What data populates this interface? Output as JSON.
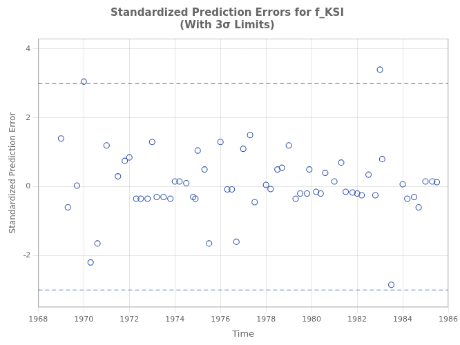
{
  "chart_data": {
    "type": "scatter",
    "title": "Standardized Prediction Errors for f_KSI\n(With 3σ Limits)",
    "xlabel": "Time",
    "ylabel": "Standardized Prediction Error",
    "xlim": [
      1968,
      1986
    ],
    "ylim": [
      -3.5,
      4.3
    ],
    "xticks": [
      1968,
      1970,
      1972,
      1974,
      1976,
      1978,
      1980,
      1982,
      1984,
      1986
    ],
    "yticks": [
      -2,
      0,
      2,
      4
    ],
    "grid": true,
    "marker": "open_circle",
    "color": "#3355AA",
    "x": [
      1969.0,
      1969.3,
      1969.7,
      1970.0,
      1970.3,
      1970.6,
      1971.0,
      1971.5,
      1971.8,
      1972.0,
      1972.3,
      1972.5,
      1972.8,
      1973.0,
      1973.2,
      1973.5,
      1973.8,
      1974.0,
      1974.2,
      1974.5,
      1974.8,
      1974.9,
      1975.0,
      1975.3,
      1975.5,
      1976.0,
      1976.3,
      1976.5,
      1976.7,
      1977.0,
      1977.3,
      1977.5,
      1978.0,
      1978.2,
      1978.5,
      1978.7,
      1979.0,
      1979.3,
      1979.5,
      1979.8,
      1979.9,
      1980.2,
      1980.4,
      1980.6,
      1981.0,
      1981.3,
      1981.5,
      1981.8,
      1982.0,
      1982.2,
      1982.5,
      1982.8,
      1983.0,
      1983.1,
      1983.5,
      1984.0,
      1984.2,
      1984.5,
      1984.7,
      1985.0,
      1985.3,
      1985.5
    ],
    "values": [
      1.4,
      -0.6,
      0.03,
      3.05,
      -2.2,
      -1.65,
      1.2,
      0.3,
      0.75,
      0.85,
      -0.35,
      -0.35,
      -0.35,
      1.3,
      -0.3,
      -0.3,
      -0.35,
      0.15,
      0.15,
      0.1,
      -0.3,
      -0.35,
      1.05,
      0.5,
      -1.65,
      1.3,
      -0.08,
      -0.08,
      -1.6,
      1.1,
      1.5,
      -0.45,
      0.05,
      -0.07,
      0.5,
      0.55,
      1.2,
      -0.35,
      -0.2,
      -0.2,
      0.5,
      -0.15,
      -0.2,
      0.4,
      0.15,
      0.7,
      -0.15,
      -0.17,
      -0.2,
      -0.25,
      0.35,
      -0.25,
      3.4,
      0.8,
      -2.85,
      0.07,
      -0.35,
      -0.3,
      -0.6,
      0.15,
      0.15,
      0.13
    ],
    "reference_lines": [
      {
        "y": 3.0,
        "color": "#5588CC",
        "line_style": "dashed"
      },
      {
        "y": -3.0,
        "color": "#5588CC",
        "line_style": "dashed"
      }
    ]
  }
}
